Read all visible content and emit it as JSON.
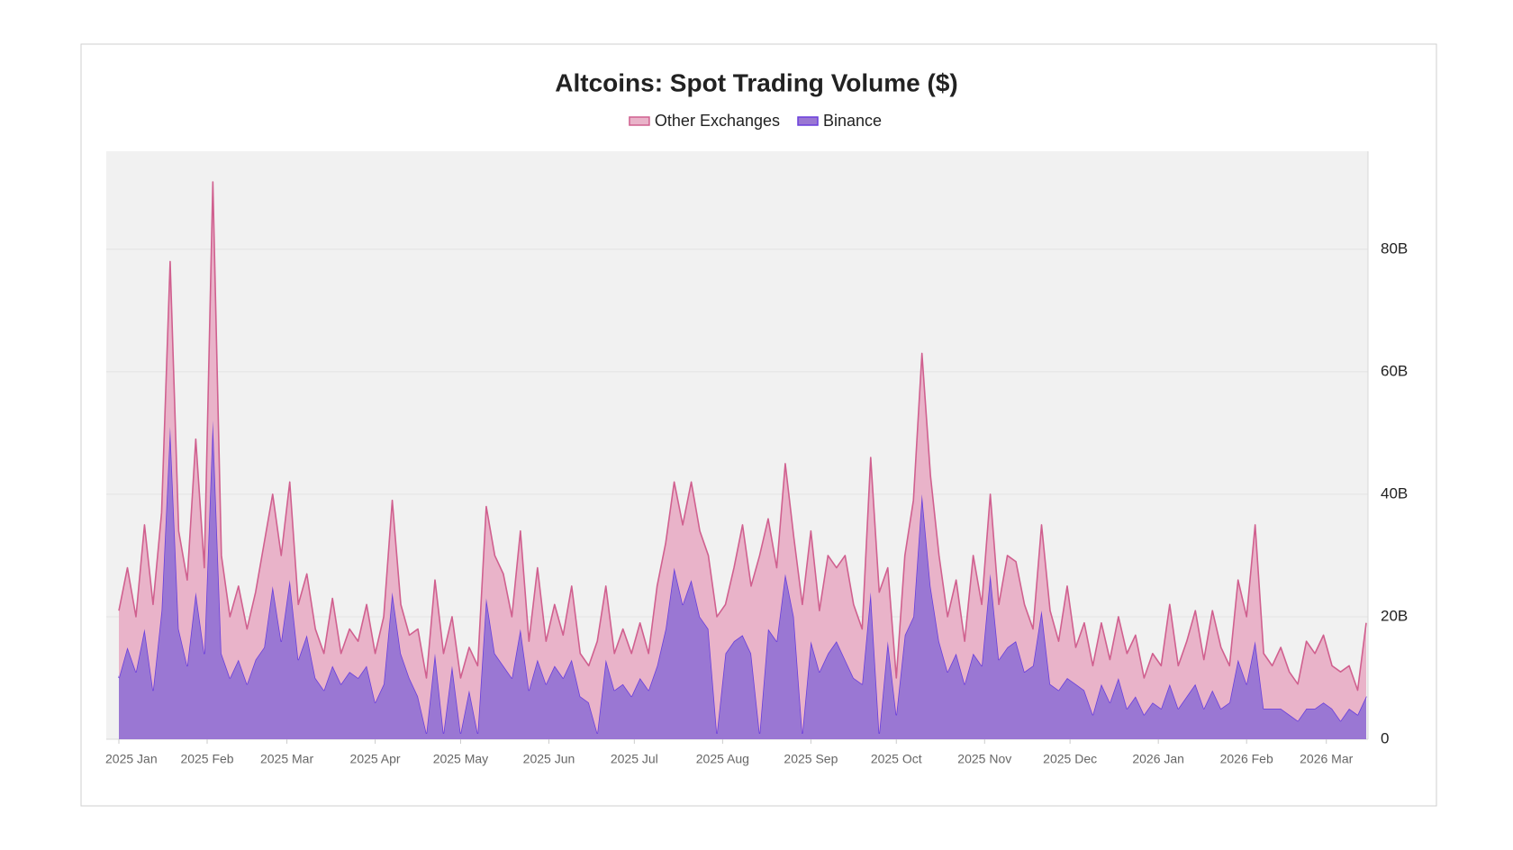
{
  "chart_data": {
    "type": "stacked-area",
    "title": "Altcoins: Spot Trading Volume ($)",
    "stacked": true,
    "legend": "top",
    "grid": true,
    "x": [
      "2025-01-01",
      "2025-01-04",
      "2025-01-07",
      "2025-01-10",
      "2025-01-13",
      "2025-01-16",
      "2025-01-19",
      "2025-01-22",
      "2025-01-25",
      "2025-01-28",
      "2025-01-31",
      "2025-02-03",
      "2025-02-06",
      "2025-02-09",
      "2025-02-12",
      "2025-02-15",
      "2025-02-18",
      "2025-02-21",
      "2025-02-24",
      "2025-02-27",
      "2025-03-02",
      "2025-03-05",
      "2025-03-08",
      "2025-03-11",
      "2025-03-14",
      "2025-03-17",
      "2025-03-20",
      "2025-03-23",
      "2025-03-26",
      "2025-03-29",
      "2025-04-01",
      "2025-04-04",
      "2025-04-07",
      "2025-04-10",
      "2025-04-13",
      "2025-04-16",
      "2025-04-19",
      "2025-04-22",
      "2025-04-25",
      "2025-04-28",
      "2025-05-01",
      "2025-05-04",
      "2025-05-07",
      "2025-05-10",
      "2025-05-13",
      "2025-05-16",
      "2025-05-19",
      "2025-05-22",
      "2025-05-25",
      "2025-05-28",
      "2025-05-31",
      "2025-06-03",
      "2025-06-06",
      "2025-06-09",
      "2025-06-12",
      "2025-06-15",
      "2025-06-18",
      "2025-06-21",
      "2025-06-24",
      "2025-06-27",
      "2025-06-30",
      "2025-07-03",
      "2025-07-06",
      "2025-07-09",
      "2025-07-12",
      "2025-07-15",
      "2025-07-18",
      "2025-07-21",
      "2025-07-24",
      "2025-07-27",
      "2025-07-30",
      "2025-08-02",
      "2025-08-05",
      "2025-08-08",
      "2025-08-11",
      "2025-08-14",
      "2025-08-17",
      "2025-08-20",
      "2025-08-23",
      "2025-08-26",
      "2025-08-29",
      "2025-09-01",
      "2025-09-04",
      "2025-09-07",
      "2025-09-10",
      "2025-09-13",
      "2025-09-16",
      "2025-09-19",
      "2025-09-22",
      "2025-09-25",
      "2025-09-28",
      "2025-10-01",
      "2025-10-04",
      "2025-10-07",
      "2025-10-10",
      "2025-10-13",
      "2025-10-16",
      "2025-10-19",
      "2025-10-22",
      "2025-10-25",
      "2025-10-28",
      "2025-10-31",
      "2025-11-03",
      "2025-11-06",
      "2025-11-09",
      "2025-11-12",
      "2025-11-15",
      "2025-11-18",
      "2025-11-21",
      "2025-11-24",
      "2025-11-27",
      "2025-11-30",
      "2025-12-03",
      "2025-12-06",
      "2025-12-09",
      "2025-12-12",
      "2025-12-15",
      "2025-12-18",
      "2025-12-21",
      "2025-12-24",
      "2025-12-27",
      "2025-12-30",
      "2026-01-02",
      "2026-01-05",
      "2026-01-08",
      "2026-01-11",
      "2026-01-14",
      "2026-01-17",
      "2026-01-20",
      "2026-01-23",
      "2026-01-26",
      "2026-01-29",
      "2026-02-01",
      "2026-02-04",
      "2026-02-07",
      "2026-02-10",
      "2026-02-13",
      "2026-02-16",
      "2026-02-19",
      "2026-02-22",
      "2026-02-25",
      "2026-02-28",
      "2026-03-03",
      "2026-03-06",
      "2026-03-09",
      "2026-03-12",
      "2026-03-15"
    ],
    "series": [
      {
        "name": "Other Exchanges",
        "color": "#d0608f",
        "fill": "#e9b3c9",
        "values": [
          11,
          13,
          9,
          17,
          14,
          16,
          27,
          16,
          14,
          25,
          14,
          39,
          16,
          10,
          12,
          9,
          11,
          17,
          15,
          14,
          16,
          9,
          10,
          8,
          6,
          11,
          5,
          7,
          6,
          10,
          8,
          11,
          15,
          8,
          7,
          11,
          9,
          12,
          13,
          8,
          9,
          7,
          11,
          15,
          16,
          15,
          10,
          16,
          8,
          15,
          7,
          10,
          7,
          12,
          7,
          6,
          15,
          12,
          6,
          9,
          7,
          9,
          6,
          13,
          14,
          14,
          13,
          16,
          14,
          12,
          19,
          8,
          12,
          18,
          11,
          29,
          18,
          12,
          18,
          13,
          21,
          18,
          10,
          16,
          12,
          17,
          12,
          9,
          22,
          23,
          12,
          6,
          13,
          19,
          23,
          18,
          14,
          9,
          12,
          7,
          16,
          10,
          13,
          9,
          15,
          13,
          11,
          6,
          14,
          12,
          8,
          15,
          6,
          11,
          8,
          10,
          7,
          10,
          9,
          10,
          6,
          8,
          7,
          13,
          7,
          9,
          12,
          8,
          13,
          10,
          6,
          13,
          11,
          19,
          9,
          7,
          10,
          7,
          6,
          11,
          9,
          11,
          7,
          8,
          7,
          4,
          12
        ]
      },
      {
        "name": "Binance",
        "color": "#6a3fdc",
        "fill": "#9a77d3",
        "values": [
          10,
          15,
          11,
          18,
          8,
          21,
          51,
          18,
          12,
          24,
          14,
          52,
          14,
          10,
          13,
          9,
          13,
          15,
          25,
          16,
          26,
          13,
          17,
          10,
          8,
          12,
          9,
          11,
          10,
          12,
          6,
          9,
          24,
          14,
          10,
          7,
          1,
          14,
          1,
          12,
          1,
          8,
          1,
          23,
          14,
          12,
          10,
          18,
          8,
          13,
          9,
          12,
          10,
          13,
          7,
          6,
          1,
          13,
          8,
          9,
          7,
          10,
          8,
          12,
          18,
          28,
          22,
          26,
          20,
          18,
          1,
          14,
          16,
          17,
          14,
          1,
          18,
          16,
          27,
          20,
          1,
          16,
          11,
          14,
          16,
          13,
          10,
          9,
          24,
          1,
          16,
          4,
          17,
          20,
          40,
          25,
          16,
          11,
          14,
          9,
          14,
          12,
          27,
          13,
          15,
          16,
          11,
          12,
          21,
          9,
          8,
          10,
          9,
          8,
          4,
          9,
          6,
          10,
          5,
          7,
          4,
          6,
          5,
          9,
          5,
          7,
          9,
          5,
          8,
          5,
          6,
          13,
          9,
          16,
          5,
          5,
          5,
          4,
          3,
          5,
          5,
          6,
          5,
          3,
          5,
          4,
          7
        ]
      }
    ],
    "xlim": [
      "2025-01-01",
      "2026-03-15"
    ],
    "xticks": [
      {
        "value": "2025-01-01",
        "label": "2025 Jan"
      },
      {
        "value": "2025-02-01",
        "label": "2025 Feb"
      },
      {
        "value": "2025-03-01",
        "label": "2025 Mar"
      },
      {
        "value": "2025-04-01",
        "label": "2025 Apr"
      },
      {
        "value": "2025-05-01",
        "label": "2025 May"
      },
      {
        "value": "2025-06-01",
        "label": "2025 Jun"
      },
      {
        "value": "2025-07-01",
        "label": "2025 Jul"
      },
      {
        "value": "2025-08-01",
        "label": "2025 Aug"
      },
      {
        "value": "2025-09-01",
        "label": "2025 Sep"
      },
      {
        "value": "2025-10-01",
        "label": "2025 Oct"
      },
      {
        "value": "2025-11-01",
        "label": "2025 Nov"
      },
      {
        "value": "2025-12-01",
        "label": "2025 Dec"
      },
      {
        "value": "2026-01-01",
        "label": "2026 Jan"
      },
      {
        "value": "2026-02-01",
        "label": "2026 Feb"
      },
      {
        "value": "2026-03-01",
        "label": "2026 Mar"
      }
    ],
    "ylim": [
      0,
      96
    ],
    "yticks": [
      0,
      {
        "value": 20,
        "label": "20B"
      },
      {
        "value": 40,
        "label": "40B"
      },
      {
        "value": 60,
        "label": "60B"
      },
      {
        "value": 80,
        "label": "80B"
      }
    ]
  }
}
